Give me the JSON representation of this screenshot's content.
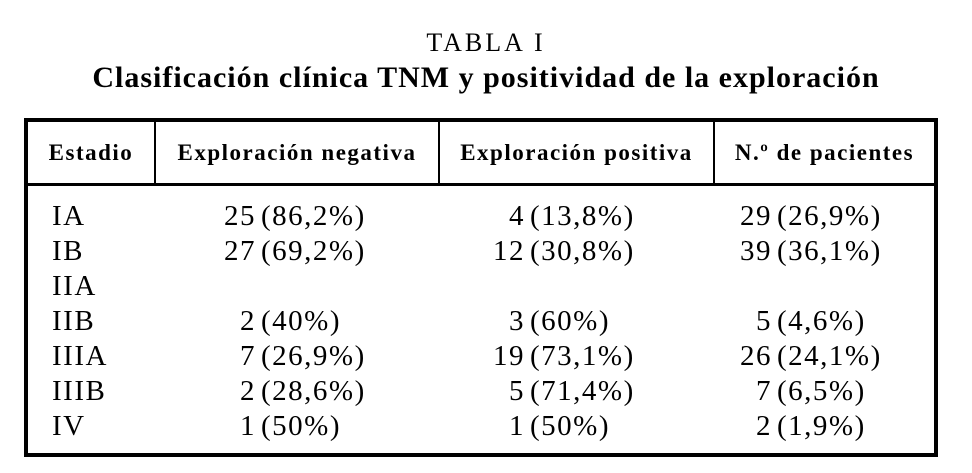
{
  "document": {
    "title": "TABLA I",
    "subtitle": "Clasificación clínica TNM y positividad de la exploración"
  },
  "colors": {
    "background": "#ffffff",
    "text": "#000000",
    "border": "#000000"
  },
  "table": {
    "columns": [
      {
        "label": "Estadio"
      },
      {
        "label": "Exploración negativa"
      },
      {
        "label": "Exploración positiva"
      },
      {
        "label": "N.º de pacientes"
      }
    ],
    "rows": [
      {
        "estadio": "IA",
        "exploracion_negativa": {
          "n": "25",
          "pct": "(86,2%)"
        },
        "exploracion_positiva": {
          "n": "4",
          "pct": "(13,8%)"
        },
        "n_pacientes": {
          "n": "29",
          "pct": "(26,9%)"
        }
      },
      {
        "estadio": "IB",
        "exploracion_negativa": {
          "n": "27",
          "pct": "(69,2%)"
        },
        "exploracion_positiva": {
          "n": "12",
          "pct": "(30,8%)"
        },
        "n_pacientes": {
          "n": "39",
          "pct": "(36,1%)"
        }
      },
      {
        "estadio": "IIA",
        "exploracion_negativa": {
          "n": "",
          "pct": ""
        },
        "exploracion_positiva": {
          "n": "",
          "pct": ""
        },
        "n_pacientes": {
          "n": "",
          "pct": ""
        }
      },
      {
        "estadio": "IIB",
        "exploracion_negativa": {
          "n": "2",
          "pct": "(40%)"
        },
        "exploracion_positiva": {
          "n": "3",
          "pct": "(60%)"
        },
        "n_pacientes": {
          "n": "5",
          "pct": "(4,6%)"
        }
      },
      {
        "estadio": "IIIA",
        "exploracion_negativa": {
          "n": "7",
          "pct": "(26,9%)"
        },
        "exploracion_positiva": {
          "n": "19",
          "pct": "(73,1%)"
        },
        "n_pacientes": {
          "n": "26",
          "pct": "(24,1%)"
        }
      },
      {
        "estadio": "IIIB",
        "exploracion_negativa": {
          "n": "2",
          "pct": "(28,6%)"
        },
        "exploracion_positiva": {
          "n": "5",
          "pct": "(71,4%)"
        },
        "n_pacientes": {
          "n": "7",
          "pct": "(6,5%)"
        }
      },
      {
        "estadio": "IV",
        "exploracion_negativa": {
          "n": "1",
          "pct": "(50%)"
        },
        "exploracion_positiva": {
          "n": "1",
          "pct": "(50%)"
        },
        "n_pacientes": {
          "n": "2",
          "pct": "(1,9%)"
        }
      }
    ]
  }
}
